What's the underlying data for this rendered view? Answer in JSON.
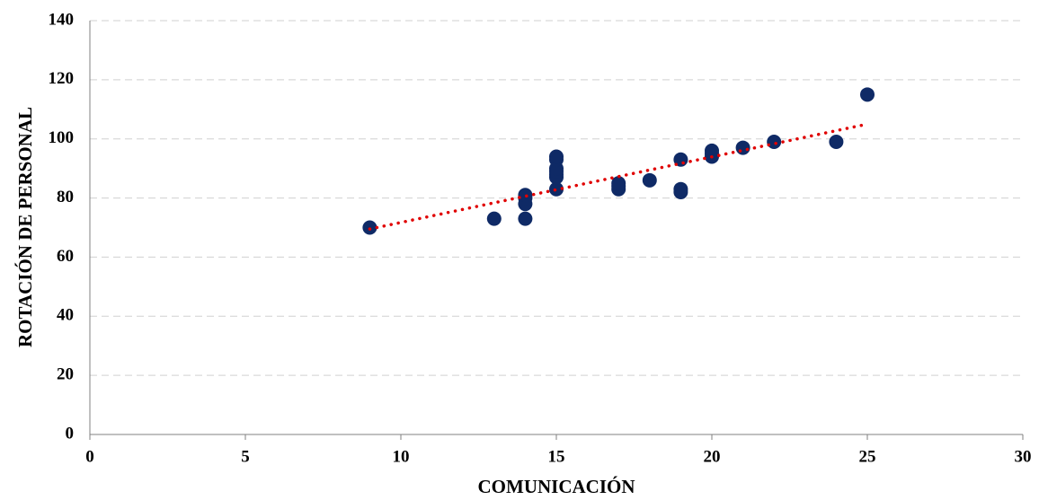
{
  "chart_data": {
    "type": "scatter",
    "xlabel": "COMUNICACIÓN",
    "ylabel": "ROTACIÓN DE PERSONAL",
    "x": [
      9,
      13,
      14,
      14,
      14,
      14,
      15,
      15,
      15,
      15,
      15,
      15,
      15,
      17,
      17,
      17,
      18,
      19,
      19,
      19,
      20,
      20,
      20,
      21,
      22,
      24,
      25
    ],
    "values": [
      70,
      73,
      73,
      78,
      80,
      81,
      83,
      87,
      88,
      89,
      90,
      93,
      94,
      83,
      84,
      85,
      86,
      82,
      83,
      93,
      94,
      95,
      96,
      97,
      99,
      99,
      115
    ],
    "color": "#0f2a66",
    "trendline": {
      "x": [
        9,
        25
      ],
      "values": [
        69.5,
        105
      ],
      "color": "#e00000"
    },
    "xlim": [
      0,
      30
    ],
    "xticks": [
      0,
      5,
      10,
      15,
      20,
      25,
      30
    ],
    "ylim": [
      0,
      140
    ],
    "yticks": [
      0,
      20,
      40,
      60,
      80,
      100,
      120,
      140
    ],
    "grid": true
  }
}
